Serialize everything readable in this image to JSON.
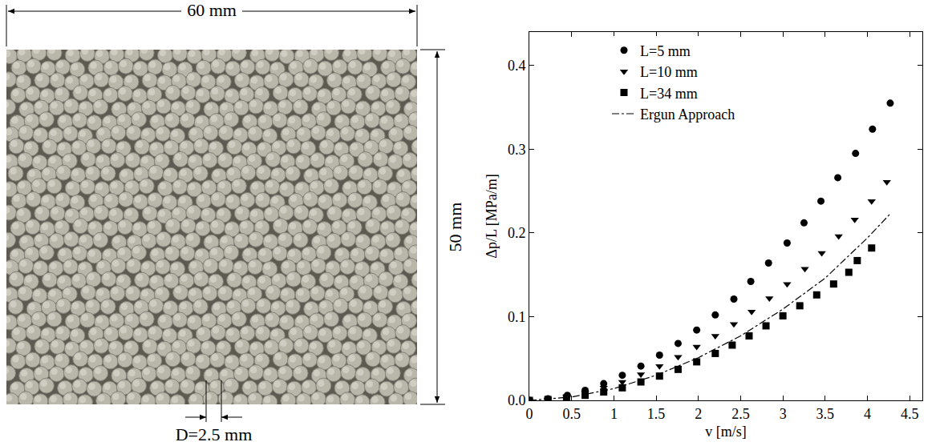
{
  "photo": {
    "width_label": "60 mm",
    "height_label": "50 mm",
    "diameter_label": "D=2.5 mm"
  },
  "chart_data": {
    "type": "scatter",
    "x_label": "v [m/s]",
    "y_label": "Δp/L [MPa/m]",
    "xlim": [
      0,
      4.65
    ],
    "xticks": [
      0,
      0.5,
      1,
      1.5,
      2,
      2.5,
      3,
      3.5,
      4,
      4.5
    ],
    "ylim": [
      0,
      0.44
    ],
    "yticks": [
      {
        "value": 0,
        "label": "0.0"
      },
      0.1,
      0.2,
      0.3,
      0.4
    ],
    "grid": false,
    "legend": "top-left",
    "series": [
      {
        "name": "L=5 mm",
        "type": "scatter",
        "marker": "circle",
        "color": "#000000",
        "x": [
          0,
          0.22,
          0.45,
          0.66,
          0.88,
          1.1,
          1.32,
          1.54,
          1.76,
          1.98,
          2.2,
          2.42,
          2.62,
          2.83,
          3.05,
          3.25,
          3.45,
          3.65,
          3.86,
          4.06,
          4.27
        ],
        "values": [
          0,
          0.002,
          0.006,
          0.012,
          0.02,
          0.03,
          0.041,
          0.054,
          0.068,
          0.084,
          0.102,
          0.121,
          0.142,
          0.164,
          0.188,
          0.212,
          0.238,
          0.266,
          0.295,
          0.324,
          0.355
        ]
      },
      {
        "name": "L=10 mm",
        "type": "scatter",
        "marker": "triangle-down",
        "color": "#000000",
        "x": [
          0,
          0.22,
          0.44,
          0.66,
          0.88,
          1.1,
          1.32,
          1.54,
          1.76,
          1.98,
          2.2,
          2.42,
          2.63,
          2.84,
          3.05,
          3.26,
          3.46,
          3.66,
          3.85,
          4.05,
          4.23
        ],
        "values": [
          0,
          0.001,
          0.004,
          0.009,
          0.015,
          0.022,
          0.031,
          0.041,
          0.052,
          0.064,
          0.077,
          0.091,
          0.106,
          0.122,
          0.139,
          0.157,
          0.176,
          0.196,
          0.216,
          0.238,
          0.261
        ]
      },
      {
        "name": "L=34 mm",
        "type": "scatter",
        "marker": "square",
        "color": "#000000",
        "x": [
          0,
          0.22,
          0.44,
          0.66,
          0.88,
          1.1,
          1.32,
          1.54,
          1.76,
          1.98,
          2.2,
          2.4,
          2.6,
          2.8,
          3.0,
          3.2,
          3.4,
          3.6,
          3.78,
          3.88,
          4.05
        ],
        "values": [
          0,
          0.001,
          0.003,
          0.006,
          0.01,
          0.015,
          0.022,
          0.029,
          0.037,
          0.046,
          0.056,
          0.066,
          0.077,
          0.089,
          0.101,
          0.113,
          0.126,
          0.139,
          0.153,
          0.167,
          0.182
        ]
      },
      {
        "name": "Ergun Approach",
        "type": "line",
        "line_style": "dashdot",
        "color": "#000000",
        "x": [
          0,
          0.5,
          1,
          1.5,
          2,
          2.5,
          3,
          3.5,
          4,
          4.28
        ],
        "values": [
          0,
          0.004,
          0.014,
          0.03,
          0.051,
          0.077,
          0.109,
          0.146,
          0.194,
          0.224
        ]
      }
    ]
  }
}
